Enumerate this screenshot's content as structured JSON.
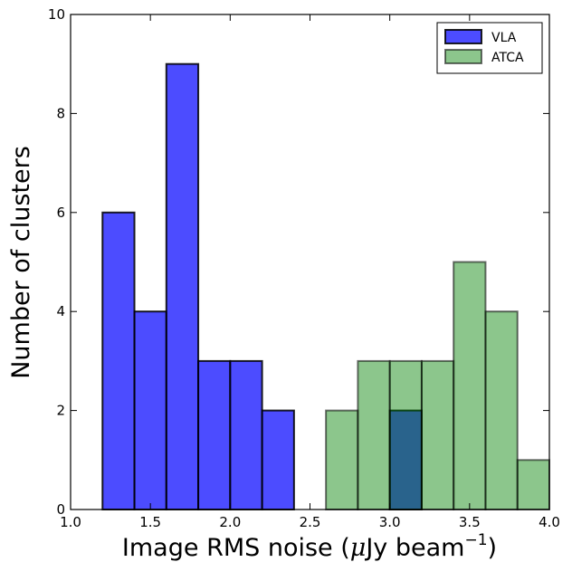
{
  "chart_data": {
    "type": "bar",
    "subtype": "histogram",
    "title": "",
    "xlabel_prefix": "Image RMS noise (",
    "xlabel_mu": "μ",
    "xlabel_mid": "Jy beam",
    "xlabel_sup": "−1",
    "xlabel_suffix": ")",
    "ylabel": "Number of clusters",
    "xlim": [
      1.0,
      4.0
    ],
    "ylim": [
      0,
      10
    ],
    "xticks": [
      1.0,
      1.5,
      2.0,
      2.5,
      3.0,
      3.5,
      4.0
    ],
    "xtick_labels": [
      "1.0",
      "1.5",
      "2.0",
      "2.5",
      "3.0",
      "3.5",
      "4.0"
    ],
    "yticks": [
      0,
      2,
      4,
      6,
      8,
      10
    ],
    "ytick_labels": [
      "0",
      "2",
      "4",
      "6",
      "8",
      "10"
    ],
    "grid": false,
    "legend_position": "top-right",
    "series": [
      {
        "name": "VLA",
        "color": "#0000ff",
        "opacity": 0.7,
        "bins": [
          {
            "x0": 1.2,
            "x1": 1.4,
            "count": 6
          },
          {
            "x0": 1.4,
            "x1": 1.6,
            "count": 4
          },
          {
            "x0": 1.6,
            "x1": 1.8,
            "count": 9
          },
          {
            "x0": 1.8,
            "x1": 2.0,
            "count": 3
          },
          {
            "x0": 2.0,
            "x1": 2.2,
            "count": 3
          },
          {
            "x0": 2.2,
            "x1": 2.4,
            "count": 2
          },
          {
            "x0": 3.0,
            "x1": 3.2,
            "count": 2
          }
        ]
      },
      {
        "name": "ATCA",
        "color": "#008000",
        "opacity": 0.45,
        "bins": [
          {
            "x0": 2.6,
            "x1": 2.8,
            "count": 2
          },
          {
            "x0": 2.8,
            "x1": 3.0,
            "count": 3
          },
          {
            "x0": 3.0,
            "x1": 3.2,
            "count": 3
          },
          {
            "x0": 3.2,
            "x1": 3.4,
            "count": 3
          },
          {
            "x0": 3.4,
            "x1": 3.6,
            "count": 5
          },
          {
            "x0": 3.6,
            "x1": 3.8,
            "count": 4
          },
          {
            "x0": 3.8,
            "x1": 4.0,
            "count": 1
          }
        ]
      }
    ]
  }
}
